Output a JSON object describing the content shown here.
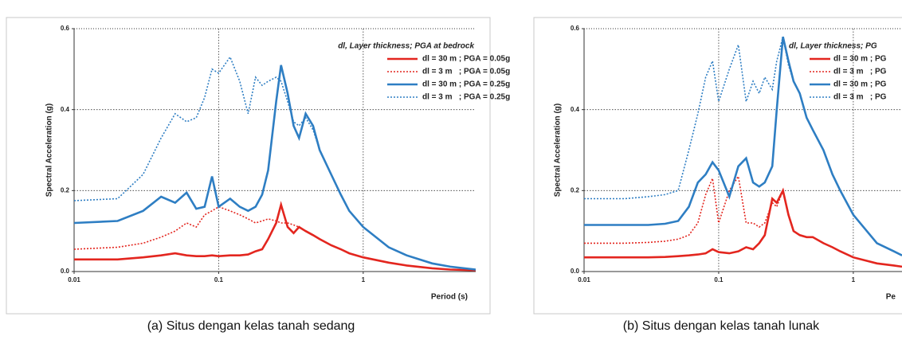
{
  "chart_data": [
    {
      "type": "line",
      "caption": "(a) Situs dengan kelas tanah sedang",
      "xlabel": "Period (s)",
      "ylabel": "Spectral Acceleration (g)",
      "legend_title": "dl, Layer thickness; PGA at bedrock",
      "legend": "upper right",
      "xscale": "log",
      "grid": true,
      "xlim": [
        0.01,
        6
      ],
      "xticks": [
        0.01,
        0.1,
        1
      ],
      "ylim": [
        0,
        0.6
      ],
      "yticks": [
        {
          "value": 0,
          "label": "0.0"
        },
        0.2,
        0.4,
        0.6
      ],
      "x": [
        0.01,
        0.02,
        0.03,
        0.04,
        0.05,
        0.06,
        0.07,
        0.08,
        0.09,
        0.1,
        0.12,
        0.14,
        0.16,
        0.18,
        0.2,
        0.22,
        0.25,
        0.27,
        0.3,
        0.33,
        0.36,
        0.4,
        0.45,
        0.5,
        0.6,
        0.7,
        0.8,
        1,
        1.5,
        2,
        3,
        4,
        6
      ],
      "series": [
        {
          "name": "dl = 30 m ; PGA = 0.05g",
          "color": "#e3261f",
          "style": "solid",
          "values": [
            0.03,
            0.03,
            0.035,
            0.04,
            0.045,
            0.04,
            0.038,
            0.038,
            0.04,
            0.038,
            0.04,
            0.04,
            0.042,
            0.05,
            0.055,
            0.08,
            0.12,
            0.165,
            0.11,
            0.095,
            0.11,
            0.1,
            0.09,
            0.08,
            0.065,
            0.055,
            0.045,
            0.035,
            0.022,
            0.015,
            0.008,
            0.005,
            0.003
          ]
        },
        {
          "name": "dl = 3 m   ; PGA = 0.05g",
          "color": "#e3261f",
          "style": "dotted",
          "values": [
            0.055,
            0.06,
            0.07,
            0.085,
            0.1,
            0.12,
            0.11,
            0.14,
            0.15,
            0.16,
            0.15,
            0.14,
            0.13,
            0.12,
            0.125,
            0.13,
            0.125,
            0.12,
            0.12,
            0.115,
            0.11,
            0.1,
            0.09,
            0.08,
            0.065,
            0.055,
            0.045,
            0.035,
            0.022,
            0.015,
            0.008,
            0.005,
            0.003
          ]
        },
        {
          "name": "dl = 30 m ; PGA = 0.25g",
          "color": "#2e7ec3",
          "style": "solid",
          "values": [
            0.12,
            0.125,
            0.15,
            0.185,
            0.17,
            0.195,
            0.155,
            0.16,
            0.235,
            0.16,
            0.18,
            0.16,
            0.15,
            0.16,
            0.19,
            0.25,
            0.42,
            0.51,
            0.44,
            0.36,
            0.33,
            0.39,
            0.36,
            0.3,
            0.24,
            0.19,
            0.15,
            0.11,
            0.06,
            0.04,
            0.02,
            0.012,
            0.005
          ]
        },
        {
          "name": "dl = 3 m   ; PGA = 0.25g",
          "color": "#2e7ec3",
          "style": "dotted",
          "values": [
            0.175,
            0.18,
            0.24,
            0.33,
            0.39,
            0.37,
            0.38,
            0.43,
            0.5,
            0.49,
            0.53,
            0.47,
            0.39,
            0.48,
            0.46,
            0.47,
            0.48,
            0.47,
            0.42,
            0.37,
            0.36,
            0.38,
            0.35,
            0.3,
            0.24,
            0.19,
            0.15,
            0.11,
            0.06,
            0.04,
            0.02,
            0.012,
            0.005
          ]
        }
      ]
    },
    {
      "type": "line",
      "caption": "(b) Situs dengan kelas tanah lunak",
      "xlabel": "Pe",
      "ylabel": "Spectral Acceleration (g)",
      "legend_title": "dl, Layer thickness; PG",
      "legend": "upper right",
      "xscale": "log",
      "grid": true,
      "xlim": [
        0.01,
        2.3
      ],
      "xticks": [
        0.01,
        0.1,
        1
      ],
      "ylim": [
        0,
        0.6
      ],
      "yticks": [
        {
          "value": 0,
          "label": "0.0"
        },
        0.2,
        0.4,
        0.6
      ],
      "x": [
        0.01,
        0.02,
        0.03,
        0.04,
        0.05,
        0.06,
        0.07,
        0.08,
        0.09,
        0.1,
        0.12,
        0.14,
        0.16,
        0.18,
        0.2,
        0.22,
        0.25,
        0.27,
        0.3,
        0.33,
        0.36,
        0.4,
        0.45,
        0.5,
        0.6,
        0.7,
        0.8,
        1,
        1.5,
        2,
        2.3
      ],
      "series": [
        {
          "name": "dl = 30 m ; PG",
          "color": "#e3261f",
          "style": "solid",
          "values": [
            0.035,
            0.035,
            0.035,
            0.036,
            0.038,
            0.04,
            0.042,
            0.045,
            0.055,
            0.048,
            0.045,
            0.05,
            0.06,
            0.055,
            0.07,
            0.09,
            0.18,
            0.17,
            0.2,
            0.14,
            0.1,
            0.09,
            0.085,
            0.085,
            0.07,
            0.06,
            0.05,
            0.035,
            0.02,
            0.015,
            0.012
          ]
        },
        {
          "name": "dl = 3 m   ; PG",
          "color": "#e3261f",
          "style": "dotted",
          "values": [
            0.07,
            0.07,
            0.072,
            0.075,
            0.08,
            0.09,
            0.12,
            0.19,
            0.23,
            0.12,
            0.2,
            0.235,
            0.12,
            0.12,
            0.11,
            0.12,
            0.17,
            0.16,
            0.2,
            0.14,
            0.1,
            0.09,
            0.085,
            0.085,
            0.07,
            0.06,
            0.05,
            0.035,
            0.02,
            0.015,
            0.012
          ]
        },
        {
          "name": "dl = 30 m ; PG",
          "color": "#2e7ec3",
          "style": "solid",
          "values": [
            0.115,
            0.115,
            0.115,
            0.118,
            0.125,
            0.16,
            0.22,
            0.24,
            0.27,
            0.25,
            0.185,
            0.26,
            0.28,
            0.22,
            0.21,
            0.22,
            0.26,
            0.4,
            0.58,
            0.52,
            0.47,
            0.44,
            0.38,
            0.35,
            0.3,
            0.24,
            0.2,
            0.14,
            0.07,
            0.05,
            0.04
          ]
        },
        {
          "name": "dl = 3 m   ; PG",
          "color": "#2e7ec3",
          "style": "dotted",
          "values": [
            0.18,
            0.18,
            0.185,
            0.19,
            0.2,
            0.3,
            0.39,
            0.48,
            0.52,
            0.42,
            0.5,
            0.56,
            0.42,
            0.47,
            0.44,
            0.48,
            0.45,
            0.52,
            0.58,
            0.51,
            0.47,
            0.44,
            0.38,
            0.35,
            0.3,
            0.24,
            0.2,
            0.14,
            0.07,
            0.05,
            0.04
          ]
        }
      ]
    }
  ]
}
